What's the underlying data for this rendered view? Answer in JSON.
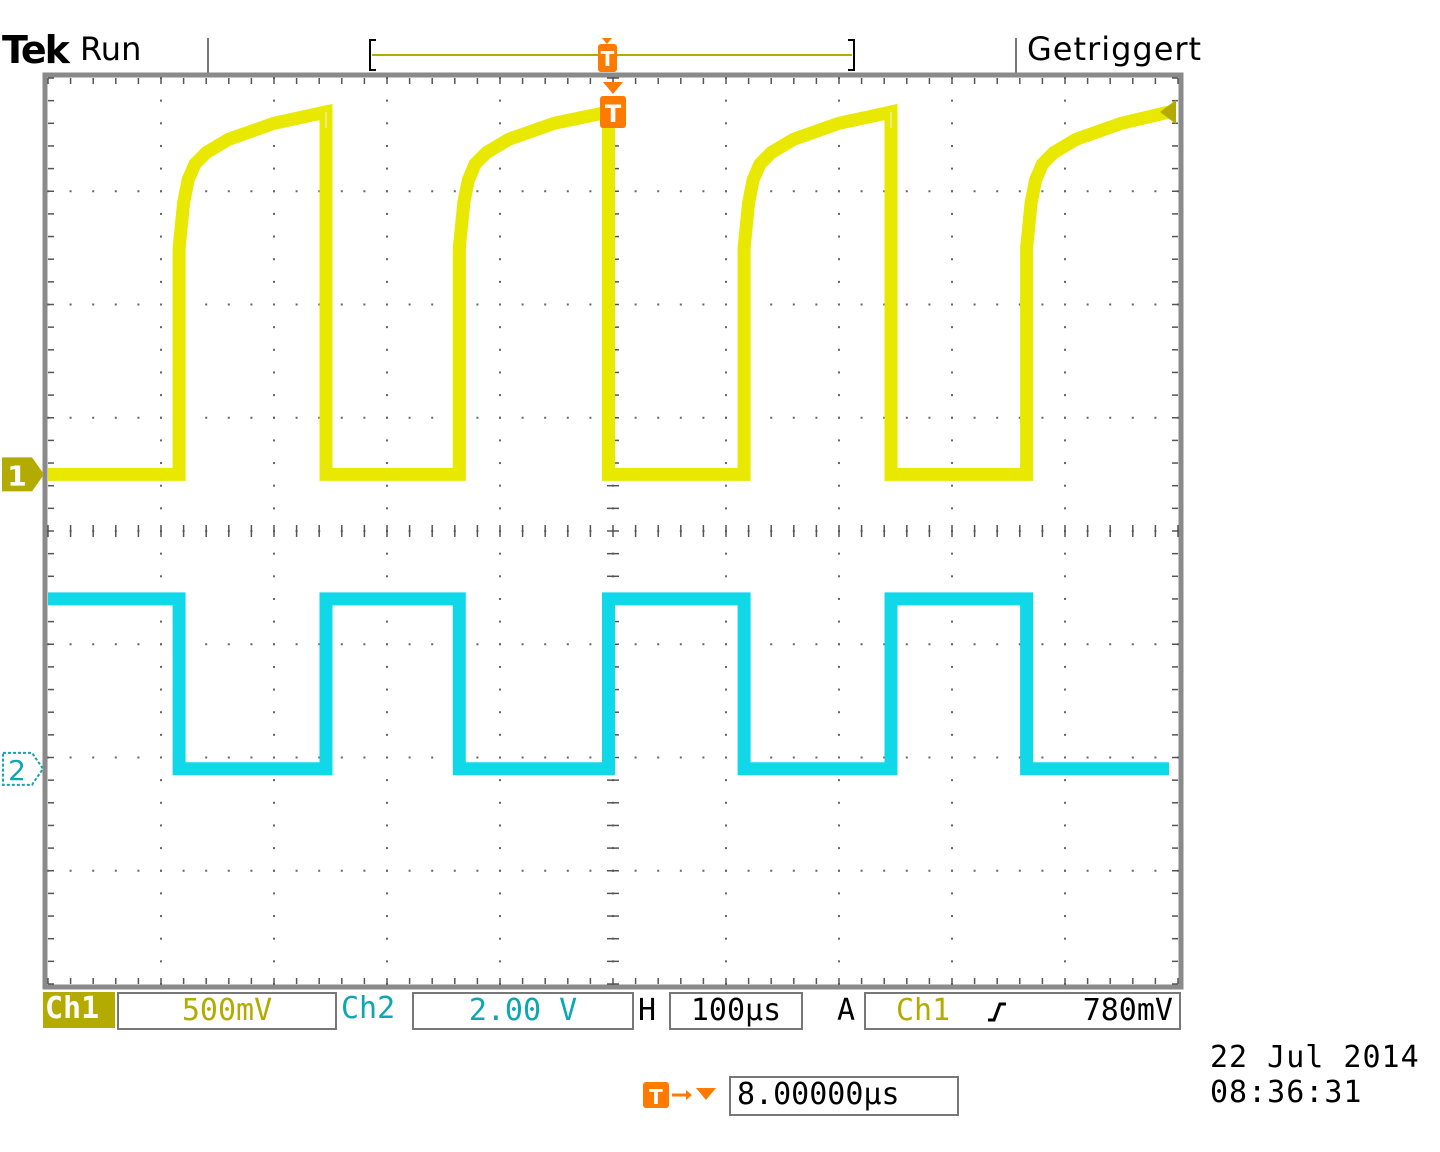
{
  "header": {
    "brand": "Tek",
    "status": "Run",
    "trigger_state": "Getriggert",
    "trigger_marker": "T"
  },
  "chart_data": {
    "type": "line",
    "title": "",
    "xlabel": "",
    "ylabel": "",
    "x_unit": "µs",
    "grid": true,
    "xlim": [
      -500,
      500
    ],
    "divisions": {
      "x": 10,
      "y": 8
    },
    "trigger_position_us": 0,
    "series": [
      {
        "name": "Ch1",
        "color": "#e8e800",
        "unit": "V",
        "volts_per_div": 0.5,
        "ground_marker": "1",
        "x": [
          -500,
          -384,
          -384,
          -380,
          -376,
          -370,
          -360,
          -340,
          -300,
          -254,
          -254,
          -250,
          -136,
          -136,
          -132,
          -128,
          -122,
          -112,
          -92,
          -52,
          -4,
          -4,
          0,
          116,
          116,
          120,
          124,
          130,
          140,
          160,
          200,
          246,
          246,
          250,
          366,
          366,
          370,
          374,
          380,
          390,
          410,
          450,
          492
        ],
        "y": [
          0,
          0,
          1.0,
          1.2,
          1.3,
          1.37,
          1.42,
          1.48,
          1.55,
          1.6,
          0,
          0,
          0,
          1.0,
          1.2,
          1.3,
          1.37,
          1.42,
          1.48,
          1.55,
          1.6,
          0,
          0,
          0,
          1.0,
          1.2,
          1.3,
          1.37,
          1.42,
          1.48,
          1.55,
          1.6,
          0,
          0,
          0,
          1.0,
          1.2,
          1.3,
          1.37,
          1.42,
          1.48,
          1.55,
          1.6
        ]
      },
      {
        "name": "Ch2",
        "color": "#10d8e8",
        "unit": "V",
        "volts_per_div": 2.0,
        "ground_marker": "2",
        "x": [
          -500,
          -384,
          -384,
          -254,
          -254,
          -136,
          -136,
          -4,
          -4,
          116,
          116,
          246,
          246,
          366,
          366,
          492
        ],
        "y": [
          3.0,
          3.0,
          0,
          0,
          3.0,
          3.0,
          0,
          0,
          3.0,
          3.0,
          0,
          0,
          3.0,
          3.0,
          0,
          0
        ]
      }
    ],
    "trigger_level_v": 0.78
  },
  "settings": {
    "ch1_label": "Ch1",
    "ch1_scale": "500mV",
    "ch2_label": "Ch2",
    "ch2_scale": "2.00 V",
    "h_label": "H",
    "h_scale": "100µs",
    "a_label": "A",
    "trig_source": "Ch1",
    "trig_slope_icon": "rising-edge-icon",
    "trig_level": "780mV",
    "trig_offset_marker": "T",
    "trig_offset": "8.00000µs"
  },
  "datetime": {
    "date": "22 Jul  2014",
    "time": "08:36:31"
  }
}
